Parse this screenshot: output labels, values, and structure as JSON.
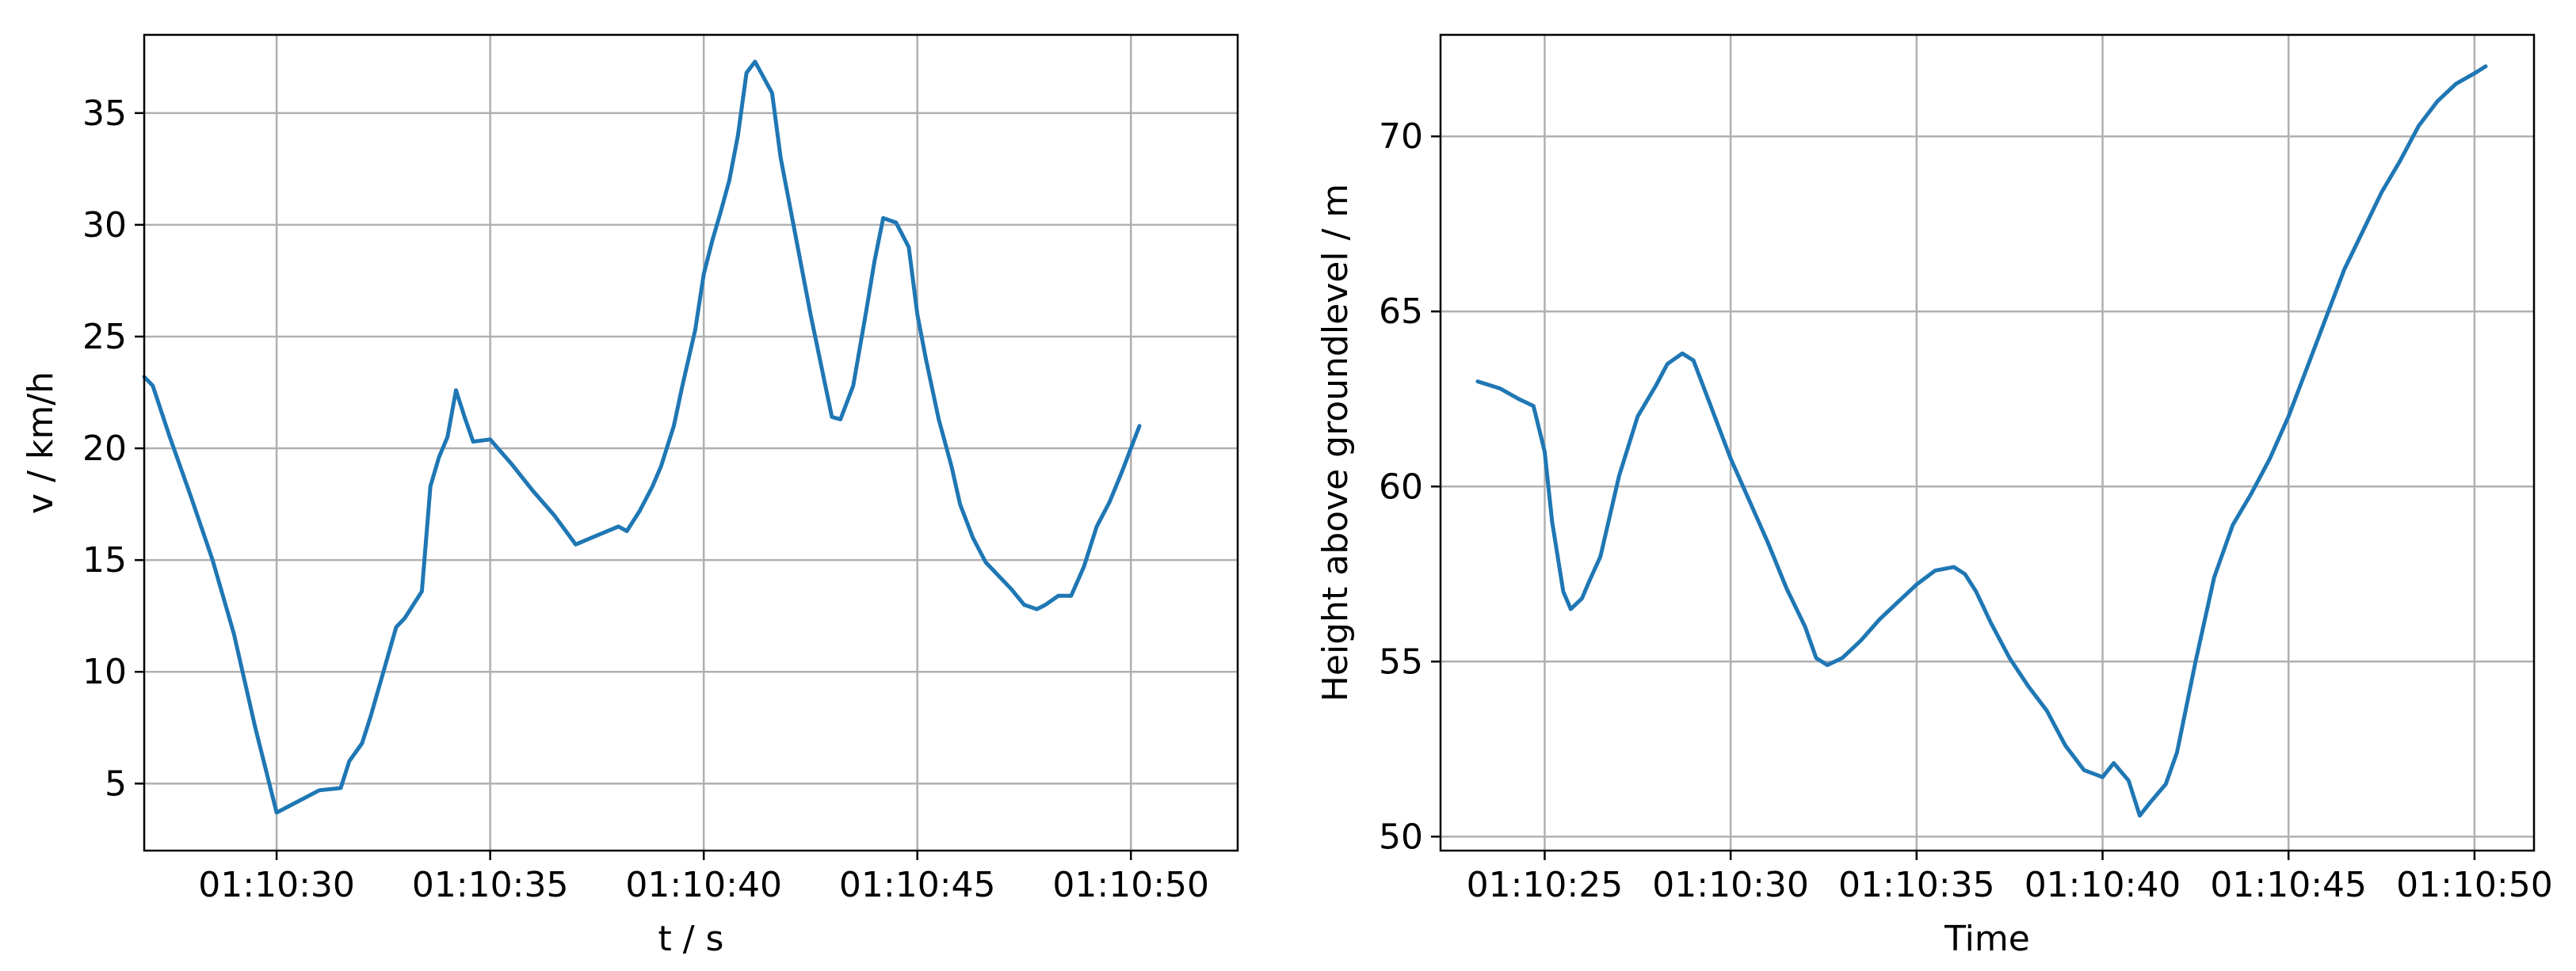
{
  "figure": {
    "background": "#ffffff",
    "line_color": "#1f77b4",
    "grid_color": "#b0b0b0"
  },
  "chart_data": [
    {
      "type": "line",
      "title": "",
      "xlabel": "t / s",
      "ylabel": "v / km/h",
      "grid": true,
      "xlim": [
        "01:10:26.9",
        "01:10:52.5"
      ],
      "ylim": [
        2.0,
        38.5
      ],
      "xticks": [
        "01:10:30",
        "01:10:35",
        "01:10:40",
        "01:10:45",
        "01:10:50"
      ],
      "yticks": [
        5,
        10,
        15,
        20,
        25,
        30,
        35
      ],
      "series": [
        {
          "color": "#1f77b4",
          "x": [
            "01:10:26.9",
            "01:10:27.1",
            "01:10:27.5",
            "01:10:28.0",
            "01:10:28.5",
            "01:10:29.0",
            "01:10:29.5",
            "01:10:30.0",
            "01:10:30.5",
            "01:10:31.0",
            "01:10:31.5",
            "01:10:31.7",
            "01:10:32.0",
            "01:10:32.2",
            "01:10:32.5",
            "01:10:32.8",
            "01:10:33.0",
            "01:10:33.2",
            "01:10:33.4",
            "01:10:33.6",
            "01:10:33.8",
            "01:10:34.0",
            "01:10:34.2",
            "01:10:34.4",
            "01:10:34.6",
            "01:10:35.0",
            "01:10:35.5",
            "01:10:36.0",
            "01:10:36.5",
            "01:10:37.0",
            "01:10:37.5",
            "01:10:38.0",
            "01:10:38.2",
            "01:10:38.5",
            "01:10:38.8",
            "01:10:39.0",
            "01:10:39.3",
            "01:10:39.5",
            "01:10:39.8",
            "01:10:40.0",
            "01:10:40.2",
            "01:10:40.4",
            "01:10:40.6",
            "01:10:40.8",
            "01:10:41.0",
            "01:10:41.2",
            "01:10:41.4",
            "01:10:41.6",
            "01:10:41.8",
            "01:10:42.0",
            "01:10:42.5",
            "01:10:43.0",
            "01:10:43.2",
            "01:10:43.5",
            "01:10:43.8",
            "01:10:44.0",
            "01:10:44.2",
            "01:10:44.5",
            "01:10:44.8",
            "01:10:45.0",
            "01:10:45.2",
            "01:10:45.5",
            "01:10:45.8",
            "01:10:46.0",
            "01:10:46.3",
            "01:10:46.6",
            "01:10:46.9",
            "01:10:47.2",
            "01:10:47.5",
            "01:10:47.8",
            "01:10:48.0",
            "01:10:48.3",
            "01:10:48.6",
            "01:10:48.9",
            "01:10:49.2",
            "01:10:49.5",
            "01:10:49.8",
            "01:10:50.0",
            "01:10:50.2"
          ],
          "y": [
            23.2,
            22.8,
            20.5,
            17.8,
            15.0,
            11.7,
            7.5,
            3.7,
            4.2,
            4.7,
            4.8,
            6.0,
            6.8,
            8.0,
            10.0,
            12.0,
            12.4,
            13.0,
            13.6,
            18.3,
            19.6,
            20.5,
            22.6,
            21.4,
            20.3,
            20.4,
            19.3,
            18.1,
            17.0,
            15.7,
            16.1,
            16.5,
            16.3,
            17.2,
            18.3,
            19.2,
            21.0,
            22.8,
            25.3,
            27.8,
            29.3,
            30.6,
            32.0,
            34.0,
            36.8,
            37.3,
            36.6,
            35.9,
            33.0,
            31.0,
            26.0,
            21.4,
            21.3,
            22.8,
            26.1,
            28.4,
            30.3,
            30.1,
            29.0,
            26.0,
            24.0,
            21.3,
            19.2,
            17.5,
            16.0,
            14.9,
            14.3,
            13.7,
            13.0,
            12.8,
            13.0,
            13.4,
            13.4,
            14.7,
            16.5,
            17.6,
            19.0,
            20.0,
            21.0
          ]
        }
      ]
    },
    {
      "type": "line",
      "title": "",
      "xlabel": "Time",
      "ylabel": "Height above groundlevel / m",
      "grid": true,
      "xlim": [
        "01:10:22.2",
        "01:10:51.6"
      ],
      "ylim": [
        49.6,
        72.9
      ],
      "xticks": [
        "01:10:25",
        "01:10:30",
        "01:10:35",
        "01:10:40",
        "01:10:45",
        "01:10:50"
      ],
      "yticks": [
        50,
        55,
        60,
        65,
        70
      ],
      "series": [
        {
          "color": "#1f77b4",
          "x": [
            "01:10:23.2",
            "01:10:23.8",
            "01:10:24.3",
            "01:10:24.7",
            "01:10:25.0",
            "01:10:25.2",
            "01:10:25.5",
            "01:10:25.7",
            "01:10:26.0",
            "01:10:26.2",
            "01:10:26.5",
            "01:10:27.0",
            "01:10:27.5",
            "01:10:28.0",
            "01:10:28.3",
            "01:10:28.7",
            "01:10:29.0",
            "01:10:29.5",
            "01:10:30.0",
            "01:10:30.5",
            "01:10:31.0",
            "01:10:31.5",
            "01:10:32.0",
            "01:10:32.3",
            "01:10:32.6",
            "01:10:33.0",
            "01:10:33.5",
            "01:10:34.0",
            "01:10:34.5",
            "01:10:35.0",
            "01:10:35.5",
            "01:10:36.0",
            "01:10:36.3",
            "01:10:36.6",
            "01:10:37.0",
            "01:10:37.5",
            "01:10:38.0",
            "01:10:38.5",
            "01:10:39.0",
            "01:10:39.5",
            "01:10:40.0",
            "01:10:40.3",
            "01:10:40.7",
            "01:10:41.0",
            "01:10:41.3",
            "01:10:41.7",
            "01:10:42.0",
            "01:10:42.5",
            "01:10:43.0",
            "01:10:43.5",
            "01:10:44.0",
            "01:10:44.5",
            "01:10:45.0",
            "01:10:45.5",
            "01:10:46.0",
            "01:10:46.5",
            "01:10:47.0",
            "01:10:47.5",
            "01:10:48.0",
            "01:10:48.5",
            "01:10:49.0",
            "01:10:49.5",
            "01:10:50.0",
            "01:10:50.3"
          ],
          "y": [
            63.0,
            62.8,
            62.5,
            62.3,
            61.0,
            59.0,
            57.0,
            56.5,
            56.8,
            57.3,
            58.0,
            60.3,
            62.0,
            62.9,
            63.5,
            63.8,
            63.6,
            62.2,
            60.8,
            59.6,
            58.4,
            57.1,
            56.0,
            55.1,
            54.9,
            55.1,
            55.6,
            56.2,
            56.7,
            57.2,
            57.6,
            57.7,
            57.5,
            57.0,
            56.1,
            55.1,
            54.3,
            53.6,
            52.6,
            51.9,
            51.7,
            52.1,
            51.6,
            50.6,
            51.0,
            51.5,
            52.4,
            55.0,
            57.4,
            58.9,
            59.8,
            60.8,
            62.0,
            63.4,
            64.8,
            66.2,
            67.3,
            68.4,
            69.3,
            70.3,
            71.0,
            71.5,
            71.8,
            72.0
          ]
        }
      ]
    }
  ]
}
